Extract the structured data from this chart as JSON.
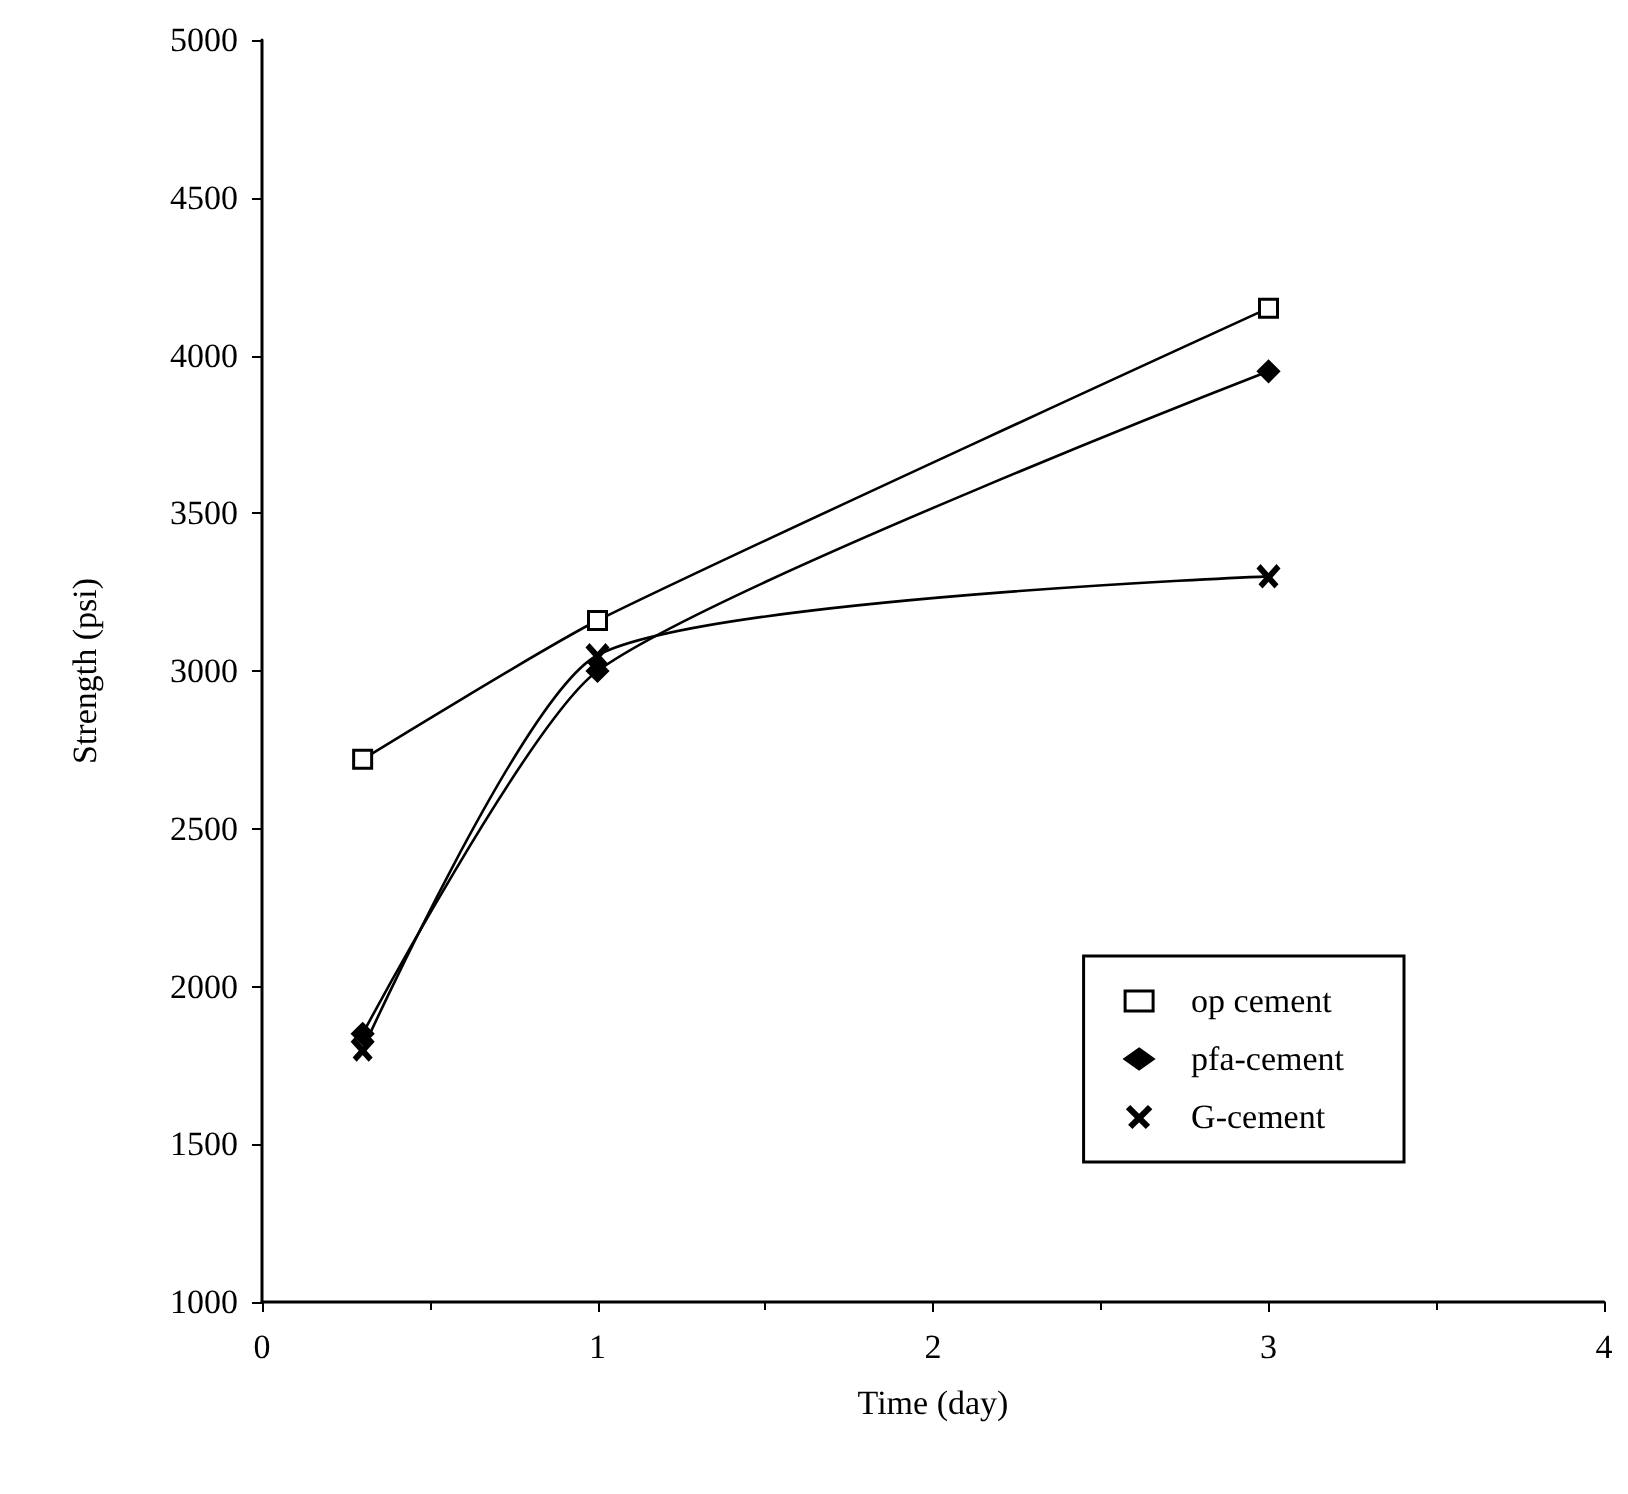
{
  "chart_data": {
    "type": "line",
    "xlabel": "Time (day)",
    "ylabel": "Strength (psi)",
    "xlim": [
      0,
      4
    ],
    "xticks": [
      0,
      1,
      2,
      3,
      4
    ],
    "ylim": [
      1000,
      5000
    ],
    "yticks": [
      1000,
      1500,
      2000,
      2500,
      3000,
      3500,
      4000,
      4500,
      5000
    ],
    "x": [
      0.3,
      1,
      3
    ],
    "series": [
      {
        "name": "op cement",
        "color": "#000000",
        "marker": "square",
        "values": [
          2720,
          3160,
          4150
        ]
      },
      {
        "name": "pfa-cement",
        "color": "#000000",
        "marker": "diamond",
        "values": [
          1850,
          3000,
          3950
        ]
      },
      {
        "name": "G-cement",
        "color": "#000000",
        "marker": "cross",
        "values": [
          1800,
          3050,
          3300
        ]
      }
    ],
    "grid": false,
    "legend": "bottom right",
    "line_style": "solid"
  }
}
